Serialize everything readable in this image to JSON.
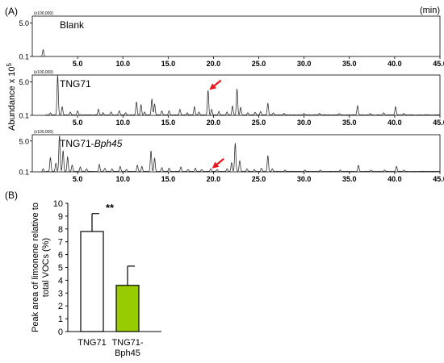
{
  "panel_a": {
    "label": "(A)",
    "unit_label": "(min)",
    "ylabel": "Abundance x 10",
    "ylabel_exp": "5",
    "multiplier": "(x100,000)",
    "ytick_labels": [
      "5.0",
      "0.1"
    ]
  },
  "panel_b": {
    "label": "(B)",
    "significance": "**"
  },
  "chart_data": [
    {
      "type": "line",
      "title": "Blank",
      "title_parts": [
        "Blank"
      ],
      "xlim": [
        0,
        45
      ],
      "ylim": [
        0.1,
        6
      ],
      "x_ticks": [
        5,
        10,
        15,
        20,
        25,
        30,
        35,
        40,
        45
      ],
      "x_tick_labels": [
        "5.0",
        "10.0",
        "15.0",
        "20.0",
        "25.0",
        "30.0",
        "35.0",
        "40.0",
        "45.0"
      ],
      "y_ticks": [
        5.0,
        0.1
      ],
      "baseline": 0.1,
      "peaks": [
        [
          1.2,
          1.1
        ]
      ]
    },
    {
      "type": "line",
      "title": "TNG71",
      "title_parts": [
        "TNG71"
      ],
      "xlim": [
        0,
        45
      ],
      "ylim": [
        0.1,
        6
      ],
      "x_ticks": [
        5,
        10,
        15,
        20,
        25,
        30,
        35,
        40,
        45
      ],
      "x_tick_labels": [
        "5.0",
        "10.0",
        "15.0",
        "20.0",
        "25.0",
        "30.0",
        "35.0",
        "40.0",
        "45.0"
      ],
      "y_ticks": [
        5.0,
        0.1
      ],
      "baseline": 0.1,
      "arrow_at": 19.4,
      "peaks": [
        [
          2.0,
          0.4
        ],
        [
          2.8,
          5.9
        ],
        [
          3.3,
          1.3
        ],
        [
          4.2,
          0.5
        ],
        [
          5.0,
          0.7
        ],
        [
          7.3,
          0.9
        ],
        [
          7.8,
          0.4
        ],
        [
          8.7,
          0.5
        ],
        [
          9.6,
          0.7
        ],
        [
          10.3,
          0.4
        ],
        [
          11.5,
          2.0
        ],
        [
          12.0,
          1.6
        ],
        [
          12.4,
          0.5
        ],
        [
          13.2,
          2.4
        ],
        [
          13.5,
          1.7
        ],
        [
          14.3,
          0.7
        ],
        [
          15.1,
          0.7
        ],
        [
          16.3,
          0.9
        ],
        [
          17.1,
          0.4
        ],
        [
          17.9,
          1.3
        ],
        [
          18.4,
          0.5
        ],
        [
          19.4,
          3.7
        ],
        [
          19.8,
          0.9
        ],
        [
          20.6,
          0.6
        ],
        [
          21.5,
          0.5
        ],
        [
          22.1,
          1.4
        ],
        [
          22.6,
          3.9
        ],
        [
          23.0,
          1.2
        ],
        [
          23.8,
          0.4
        ],
        [
          24.6,
          0.5
        ],
        [
          25.2,
          0.6
        ],
        [
          26.0,
          1.8
        ],
        [
          26.6,
          0.4
        ],
        [
          27.8,
          0.3
        ],
        [
          30.0,
          0.3
        ],
        [
          31.7,
          0.3
        ],
        [
          33.9,
          0.3
        ],
        [
          35.9,
          1.4
        ],
        [
          37.3,
          0.3
        ],
        [
          38.8,
          0.4
        ],
        [
          40.1,
          1.3
        ],
        [
          41.0,
          0.3
        ]
      ]
    },
    {
      "type": "line",
      "title": "TNG71-Bph45",
      "title_parts": [
        "TNG71-",
        "Bph45"
      ],
      "xlim": [
        0,
        45
      ],
      "ylim": [
        0.1,
        6
      ],
      "x_ticks": [
        5,
        10,
        15,
        20,
        25,
        30,
        35,
        40,
        45
      ],
      "x_tick_labels": [
        "5.0",
        "10.0",
        "15.0",
        "20.0",
        "25.0",
        "30.0",
        "35.0",
        "40.0",
        "45.0"
      ],
      "y_ticks": [
        5.0,
        0.1
      ],
      "baseline": 0.1,
      "arrow_at": 19.7,
      "peaks": [
        [
          1.2,
          0.6
        ],
        [
          2.0,
          2.3
        ],
        [
          2.6,
          1.4
        ],
        [
          3.0,
          5.8
        ],
        [
          3.4,
          3.4
        ],
        [
          3.9,
          2.4
        ],
        [
          4.4,
          1.1
        ],
        [
          5.3,
          0.8
        ],
        [
          6.0,
          0.5
        ],
        [
          7.4,
          1.2
        ],
        [
          8.0,
          0.6
        ],
        [
          8.8,
          0.5
        ],
        [
          9.7,
          0.9
        ],
        [
          10.4,
          0.4
        ],
        [
          11.6,
          1.1
        ],
        [
          12.1,
          0.9
        ],
        [
          13.1,
          3.4
        ],
        [
          13.5,
          2.2
        ],
        [
          14.3,
          0.7
        ],
        [
          15.1,
          0.6
        ],
        [
          16.4,
          0.8
        ],
        [
          17.2,
          0.4
        ],
        [
          18.0,
          0.6
        ],
        [
          18.7,
          0.4
        ],
        [
          19.7,
          0.5
        ],
        [
          20.4,
          0.4
        ],
        [
          21.5,
          0.5
        ],
        [
          22.0,
          1.5
        ],
        [
          22.4,
          4.6
        ],
        [
          22.9,
          1.8
        ],
        [
          23.7,
          0.5
        ],
        [
          24.5,
          0.4
        ],
        [
          25.3,
          0.6
        ],
        [
          26.0,
          2.6
        ],
        [
          26.5,
          0.5
        ],
        [
          27.9,
          0.3
        ],
        [
          30.1,
          0.3
        ],
        [
          31.8,
          0.3
        ],
        [
          34.0,
          0.3
        ],
        [
          36.0,
          1.1
        ],
        [
          37.4,
          0.3
        ],
        [
          38.9,
          0.3
        ],
        [
          40.2,
          0.9
        ],
        [
          41.0,
          0.3
        ]
      ]
    },
    {
      "type": "bar",
      "categories": [
        "TNG71",
        "TNG71-Bph45"
      ],
      "category_labels": [
        [
          "TNG71"
        ],
        [
          "TNG71-",
          "Bph45"
        ]
      ],
      "values": [
        7.8,
        3.6
      ],
      "errors": [
        1.4,
        1.5
      ],
      "colors": [
        "#ffffff",
        "#99cc00"
      ],
      "ylabel_lines": [
        "Peak area of limonene relative to",
        "total VOCs (%)"
      ],
      "ylim": [
        0,
        10
      ],
      "yticks": [
        0,
        1,
        2,
        3,
        4,
        5,
        6,
        7,
        8,
        9,
        10
      ]
    }
  ]
}
